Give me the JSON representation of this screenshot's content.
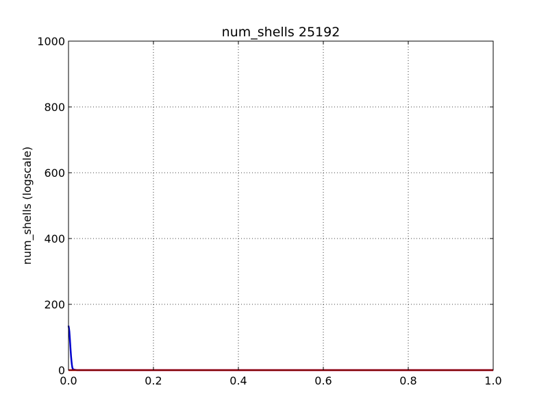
{
  "chart_data": {
    "type": "line",
    "title": "num_shells 25192",
    "xlabel": "",
    "ylabel": "num_shells (logscale)",
    "xlim": [
      0.0,
      1.0
    ],
    "ylim": [
      0,
      1000
    ],
    "x_ticks": [
      0.0,
      0.2,
      0.4,
      0.6,
      0.8,
      1.0
    ],
    "x_tick_labels": [
      "0.0",
      "0.2",
      "0.4",
      "0.6",
      "0.8",
      "1.0"
    ],
    "y_ticks": [
      0,
      200,
      400,
      600,
      800,
      1000
    ],
    "y_tick_labels": [
      "0",
      "200",
      "400",
      "600",
      "800",
      "1000"
    ],
    "grid": true,
    "series": [
      {
        "color": "#0000cc",
        "x": [
          0.0,
          0.001,
          0.002,
          0.003,
          0.004,
          0.005,
          0.006,
          0.007,
          0.008,
          0.009,
          0.01,
          0.012,
          0.015,
          0.02,
          0.03,
          1.0
        ],
        "y": [
          135,
          128,
          118,
          100,
          80,
          60,
          42,
          28,
          16,
          8,
          4,
          2,
          1,
          0,
          0,
          0
        ]
      },
      {
        "color": "#ff0000",
        "x": [
          0.0,
          0.25,
          0.5,
          0.75,
          1.0
        ],
        "y": [
          0,
          0,
          0,
          0,
          0
        ]
      }
    ]
  }
}
